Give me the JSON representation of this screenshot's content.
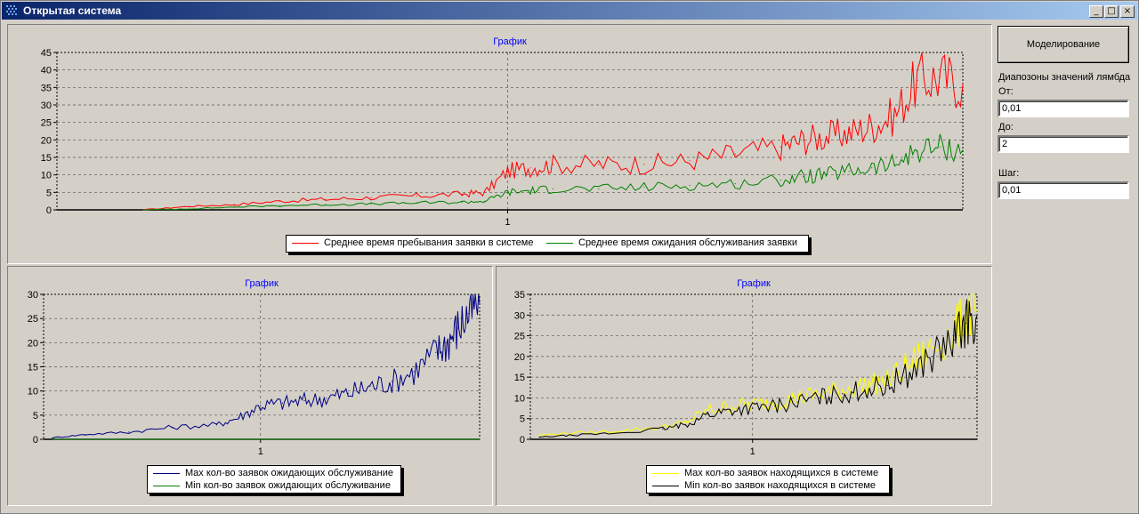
{
  "window": {
    "title": "Открытая система",
    "buttons": [
      "_",
      "□",
      "×"
    ]
  },
  "controls": {
    "simulate_label": "Моделирование",
    "range_label": "Диапозоны значений лямбда",
    "from_label": "От:",
    "from_value": "0,01",
    "to_label": "До:",
    "to_value": "2",
    "step_label": "Шаг:",
    "step_value": "0,01"
  },
  "chart_data": [
    {
      "type": "line",
      "title": "График",
      "ylim": [
        0,
        45
      ],
      "yticks": [
        0,
        5,
        10,
        15,
        20,
        25,
        30,
        35,
        40,
        45
      ],
      "xlim": [
        0.01,
        2
      ],
      "xticks": [
        1
      ],
      "xtick_labels": [
        "1"
      ],
      "grid": true,
      "legend_position": "bottom",
      "series": [
        {
          "name": "Среднее время пребывания заявки в системе",
          "color": "#ff0000",
          "x": [
            0.2,
            0.3,
            0.4,
            0.5,
            0.6,
            0.7,
            0.8,
            0.9,
            0.95,
            1.0,
            1.05,
            1.1,
            1.2,
            1.3,
            1.4,
            1.5,
            1.6,
            1.65,
            1.7,
            1.75,
            1.8,
            1.85,
            1.9,
            1.95,
            2.0
          ],
          "y": [
            0,
            1,
            1.5,
            2.5,
            3,
            3.5,
            4,
            4.5,
            5,
            11,
            12,
            13,
            13,
            13,
            14,
            16,
            18,
            20,
            21,
            22,
            24,
            27,
            37,
            38,
            36
          ]
        },
        {
          "name": "Среднее время ожидания обслуживания заявки",
          "color": "#008000",
          "x": [
            0.2,
            0.3,
            0.4,
            0.5,
            0.6,
            0.7,
            0.8,
            0.9,
            0.95,
            1.0,
            1.05,
            1.1,
            1.2,
            1.3,
            1.4,
            1.5,
            1.6,
            1.65,
            1.7,
            1.75,
            1.8,
            1.85,
            1.9,
            1.95,
            2.0
          ],
          "y": [
            0,
            0.3,
            0.8,
            1.2,
            1.5,
            1.7,
            2,
            2.2,
            2.5,
            5,
            5.5,
            6,
            6,
            6.5,
            7,
            7.5,
            8.5,
            9.5,
            10,
            11,
            12,
            13,
            17,
            18,
            17
          ]
        }
      ]
    },
    {
      "type": "line",
      "title": "График",
      "ylim": [
        0,
        30
      ],
      "yticks": [
        0,
        5,
        10,
        15,
        20,
        25,
        30
      ],
      "xlim": [
        0.01,
        2
      ],
      "xticks": [
        1
      ],
      "xtick_labels": [
        "1"
      ],
      "grid": true,
      "legend_position": "bottom",
      "series": [
        {
          "name": "Max кол-во заявок ожидающих обслуживание",
          "color": "#000080",
          "x": [
            0.05,
            0.2,
            0.4,
            0.6,
            0.8,
            0.9,
            1.0,
            1.1,
            1.2,
            1.3,
            1.4,
            1.5,
            1.6,
            1.7,
            1.8,
            1.85,
            1.9,
            1.95,
            2.0
          ],
          "y": [
            0.3,
            1,
            1.5,
            2.5,
            3,
            4.5,
            7,
            7.5,
            8,
            8.5,
            9.5,
            11,
            12,
            14,
            18,
            20,
            23,
            26,
            28
          ]
        },
        {
          "name": "Min кол-во заявок ожидающих обслуживание",
          "color": "#008000",
          "x": [
            0.05,
            2.0
          ],
          "y": [
            0,
            0
          ]
        }
      ]
    },
    {
      "type": "line",
      "title": "График",
      "ylim": [
        0,
        35
      ],
      "yticks": [
        0,
        5,
        10,
        15,
        20,
        25,
        30,
        35
      ],
      "xlim": [
        0.01,
        2
      ],
      "xticks": [
        1
      ],
      "xtick_labels": [
        "1"
      ],
      "grid": true,
      "legend_position": "bottom",
      "series": [
        {
          "name": "Max кол-во заявок находящихся в системе",
          "color": "#ffff00",
          "x": [
            0.05,
            0.2,
            0.4,
            0.6,
            0.7,
            0.8,
            0.9,
            1.0,
            1.1,
            1.2,
            1.3,
            1.4,
            1.5,
            1.6,
            1.7,
            1.8,
            1.9,
            1.95,
            2.0
          ],
          "y": [
            1,
            1.5,
            2,
            3,
            4,
            7,
            8,
            8.5,
            9,
            10,
            11,
            12,
            13,
            14,
            18,
            22,
            26,
            30,
            31
          ]
        },
        {
          "name": "Min кол-во заявок находящихся в системе",
          "color": "#000000",
          "x": [
            0.05,
            0.2,
            0.4,
            0.6,
            0.7,
            0.8,
            0.9,
            1.0,
            1.1,
            1.2,
            1.3,
            1.4,
            1.5,
            1.6,
            1.7,
            1.8,
            1.9,
            1.95,
            2.0
          ],
          "y": [
            0.5,
            1,
            1.5,
            2.5,
            3.5,
            6,
            7,
            7.5,
            8,
            9,
            10,
            11,
            12,
            13,
            16,
            20,
            24,
            28,
            30
          ]
        }
      ]
    }
  ]
}
